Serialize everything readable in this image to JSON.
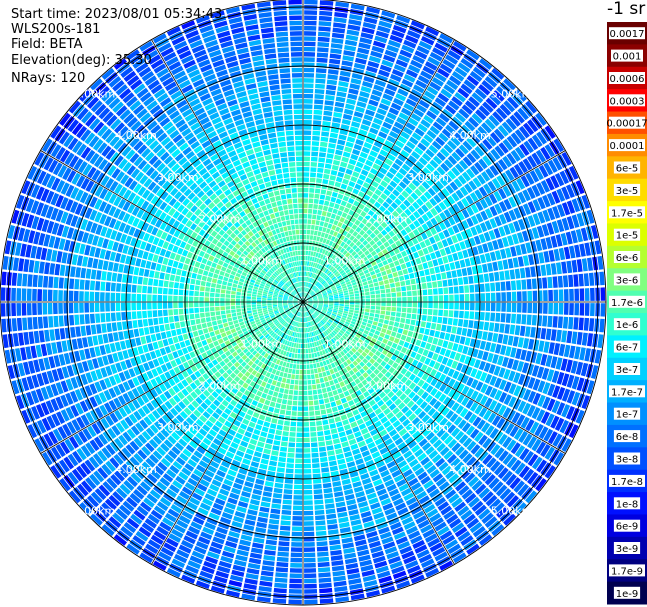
{
  "header": {
    "start_time": "Start time: 2023/08/01 05:34:43",
    "instrument": "WLS200s-181",
    "field": "Field: BETA",
    "elevation": "Elevation(deg): 35.30",
    "nrays": "NRays: 120"
  },
  "colorbar": {
    "unit_label": "-1 sr",
    "ticks": [
      "0.0017",
      "0.001",
      "0.0006",
      "0.0003",
      "0.00017",
      "0.0001",
      "6e-5",
      "3e-5",
      "1.7e-5",
      "1e-5",
      "6e-6",
      "3e-6",
      "1.7e-6",
      "1e-6",
      "6e-7",
      "3e-7",
      "1.7e-7",
      "1e-7",
      "6e-8",
      "3e-8",
      "1.7e-8",
      "1e-8",
      "6e-9",
      "3e-9",
      "1.7e-9",
      "1e-9"
    ],
    "colors": [
      "#6a0000",
      "#8b0000",
      "#c80000",
      "#ff0000",
      "#ff5000",
      "#ff8c00",
      "#ffb400",
      "#ffdc00",
      "#ffff00",
      "#dcff00",
      "#b4ff30",
      "#80ff80",
      "#50ffb0",
      "#30ffd0",
      "#00f0ff",
      "#00d0ff",
      "#00b0ff",
      "#0090ff",
      "#0070ff",
      "#0050ff",
      "#0030ff",
      "#0010ff",
      "#0000e0",
      "#0000b0",
      "#000080",
      "#000050"
    ]
  },
  "chart_data": {
    "type": "heatmap",
    "projection": "polar (PPI)",
    "field": "BETA",
    "nrays": 120,
    "range_rings_km": [
      1.0,
      2.0,
      3.0,
      4.0,
      5.0
    ],
    "range_ring_labels": [
      "1.00km",
      "2.00km",
      "3.00km",
      "4.00km",
      "5.00km"
    ],
    "max_range_km": 5.85,
    "spokes_deg": [
      0,
      30,
      60,
      90,
      120,
      150,
      180,
      210,
      240,
      270,
      300,
      330
    ],
    "value_scale": "log",
    "value_range": [
      1e-09,
      0.0017
    ],
    "radial_profile": [
      {
        "range_km": 0.5,
        "value": 1e-06
      },
      {
        "range_km": 1.5,
        "value": 1.7e-06
      },
      {
        "range_km": 2.0,
        "value": 1e-06
      },
      {
        "range_km": 3.0,
        "value": 3e-07
      },
      {
        "range_km": 4.0,
        "value": 1e-07
      },
      {
        "range_km": 5.0,
        "value": 3e-08
      },
      {
        "range_km": 5.8,
        "value": 1.7e-08
      }
    ]
  }
}
